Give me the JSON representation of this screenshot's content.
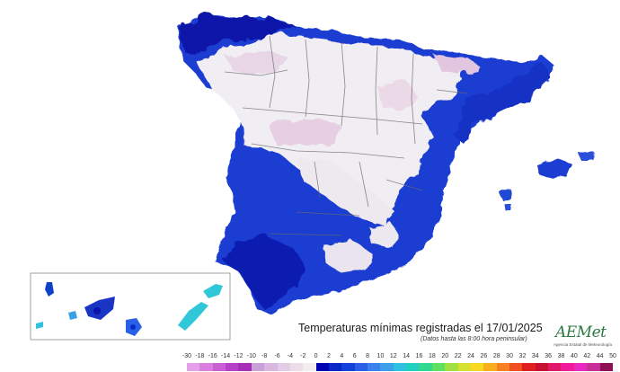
{
  "map": {
    "title": "Temperaturas mínimas registradas el 17/01/2025",
    "subtitle": "(Datos hasta las 8:00 hora peninsular)"
  },
  "logo": {
    "name": "AEMet",
    "sub": "Agencia Estatal de Meteorología"
  },
  "legend": {
    "ticks": [
      "-30",
      "-18",
      "-16",
      "-14",
      "-12",
      "-10",
      "-8",
      "-6",
      "-4",
      "-2",
      "0",
      "2",
      "4",
      "6",
      "8",
      "10",
      "12",
      "14",
      "16",
      "18",
      "20",
      "22",
      "24",
      "26",
      "28",
      "30",
      "32",
      "34",
      "36",
      "38",
      "40",
      "42",
      "44",
      "50"
    ],
    "colors": [
      "#e6a0ea",
      "#d97fe0",
      "#c95fd5",
      "#b640c8",
      "#a72fb8",
      "#c9a0d8",
      "#d8b8e0",
      "#e3cde6",
      "#ecdde9",
      "#f3ecf0",
      "#0000b4",
      "#0a28c8",
      "#1440dc",
      "#2a60e8",
      "#3c80f0",
      "#3aa0e8",
      "#30c0e0",
      "#20d0c0",
      "#30d890",
      "#60e060",
      "#a0e040",
      "#d8e030",
      "#f8d820",
      "#f8b020",
      "#f88020",
      "#f05020",
      "#e02020",
      "#c81030",
      "#e01a6a",
      "#f01a9a",
      "#e82ac0",
      "#c83098",
      "#901058"
    ]
  },
  "colors": {
    "sea": "#ffffff",
    "cold_deep": "#0a14a8",
    "cold": "#1e3cd2",
    "mild": "#f1eef3",
    "frost": "#e6d3e3",
    "border": "#6a6a6a"
  }
}
